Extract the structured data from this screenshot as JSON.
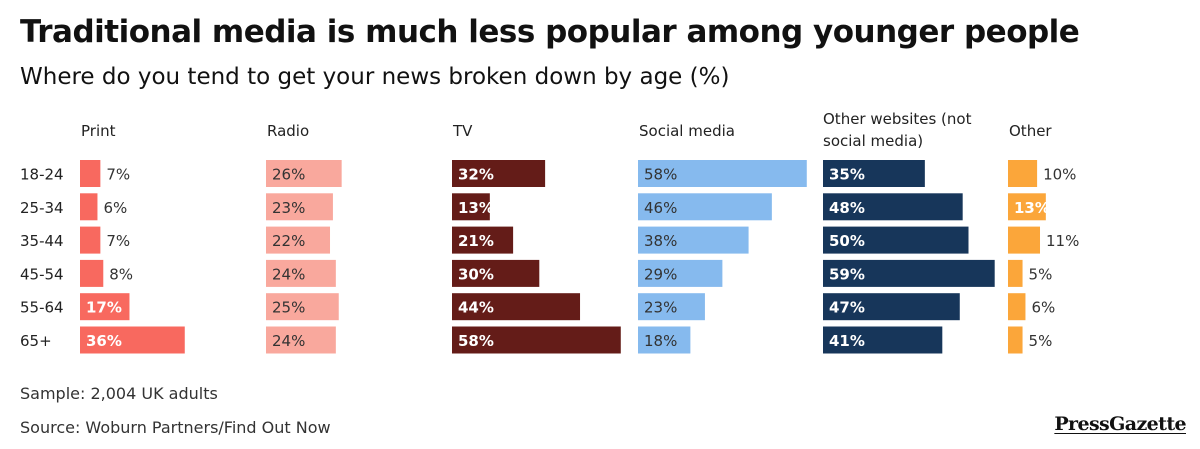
{
  "title": "Traditional media is much less popular among younger people",
  "subtitle": "Where do you tend to get your news broken down by age (%)",
  "chart_data": {
    "type": "bar",
    "orientation": "horizontal",
    "layout": "small-multiples",
    "categories": [
      "18-24",
      "25-34",
      "35-44",
      "45-54",
      "55-64",
      "65+"
    ],
    "value_suffix": "%",
    "series": [
      {
        "name": "Print",
        "color": "#f8695f",
        "values": [
          7,
          6,
          7,
          8,
          17,
          36
        ]
      },
      {
        "name": "Radio",
        "color": "#f9a89d",
        "values": [
          26,
          23,
          22,
          24,
          25,
          24
        ]
      },
      {
        "name": "TV",
        "color": "#641c18",
        "values": [
          32,
          13,
          21,
          30,
          44,
          58
        ]
      },
      {
        "name": "Social media",
        "color": "#86baee",
        "values": [
          58,
          46,
          38,
          29,
          23,
          18
        ]
      },
      {
        "name": "Other websites (not social media)",
        "name_lines": [
          "Other websites (not",
          "social media)"
        ],
        "color": "#17365a",
        "values": [
          35,
          48,
          50,
          59,
          47,
          41
        ]
      },
      {
        "name": "Other",
        "color": "#fba63a",
        "values": [
          10,
          13,
          11,
          5,
          6,
          5
        ]
      }
    ]
  },
  "footer": {
    "sample": "Sample: 2,004 UK adults",
    "source": "Source: Woburn Partners/Find Out Now"
  },
  "logo": "PressGazette"
}
